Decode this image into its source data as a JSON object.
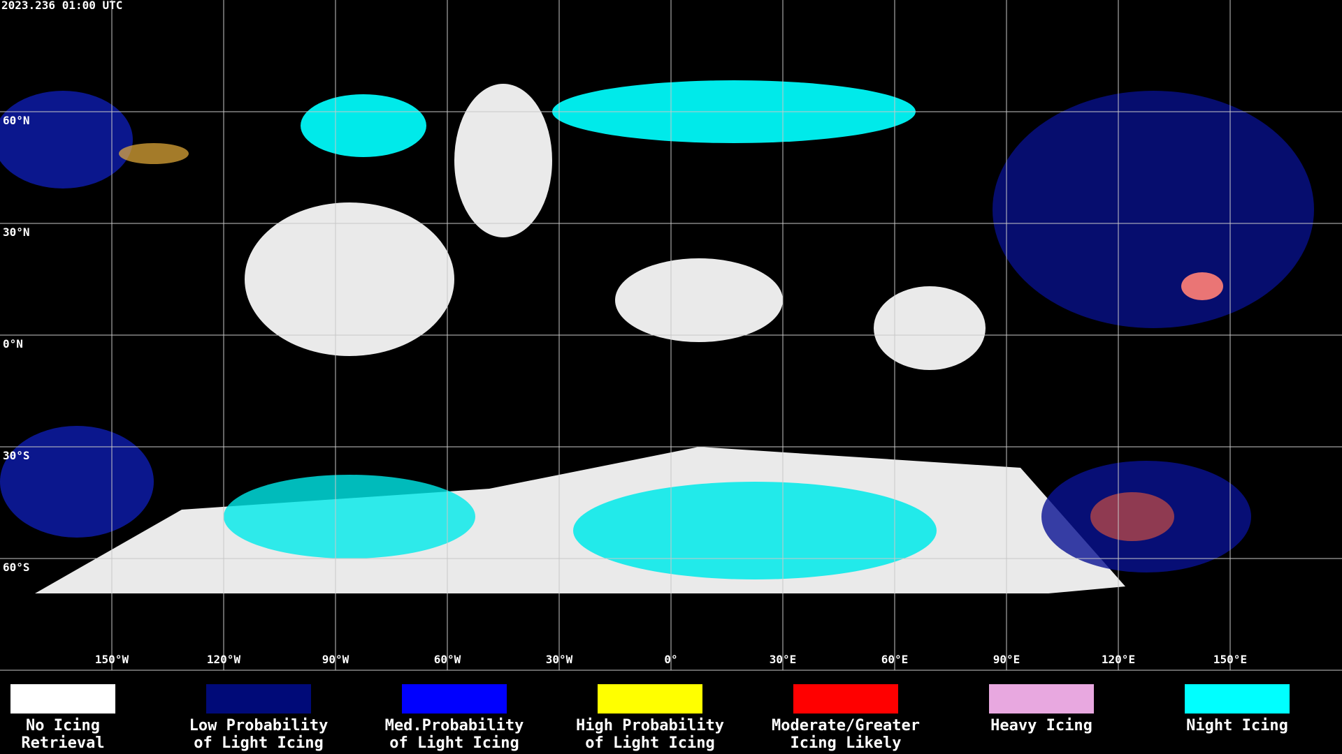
{
  "header": {
    "timestamp": "2023.236 01:00 UTC"
  },
  "map": {
    "lat_labels": [
      "60°N",
      "30°N",
      "0°N",
      "30°S",
      "60°S"
    ],
    "lon_labels": [
      "150°W",
      "120°W",
      "90°W",
      "60°W",
      "30°W",
      "0°",
      "30°E",
      "60°E",
      "90°E",
      "120°E",
      "150°E"
    ]
  },
  "legend": {
    "items": [
      {
        "color": "#ffffff",
        "label_lines": [
          "No Icing",
          "Retrieval"
        ]
      },
      {
        "color": "#000a78",
        "label_lines": [
          "Low Probability",
          "of Light Icing"
        ]
      },
      {
        "color": "#0000ff",
        "label_lines": [
          "Med.Probability",
          "of Light Icing"
        ]
      },
      {
        "color": "#ffff00",
        "label_lines": [
          "High Probability",
          "of Light Icing"
        ]
      },
      {
        "color": "#ff0000",
        "label_lines": [
          "Moderate/Greater",
          "Icing Likely"
        ]
      },
      {
        "color": "#e8a8e0",
        "label_lines": [
          "Heavy Icing"
        ]
      },
      {
        "color": "#00ffff",
        "label_lines": [
          "Night Icing"
        ]
      }
    ]
  }
}
